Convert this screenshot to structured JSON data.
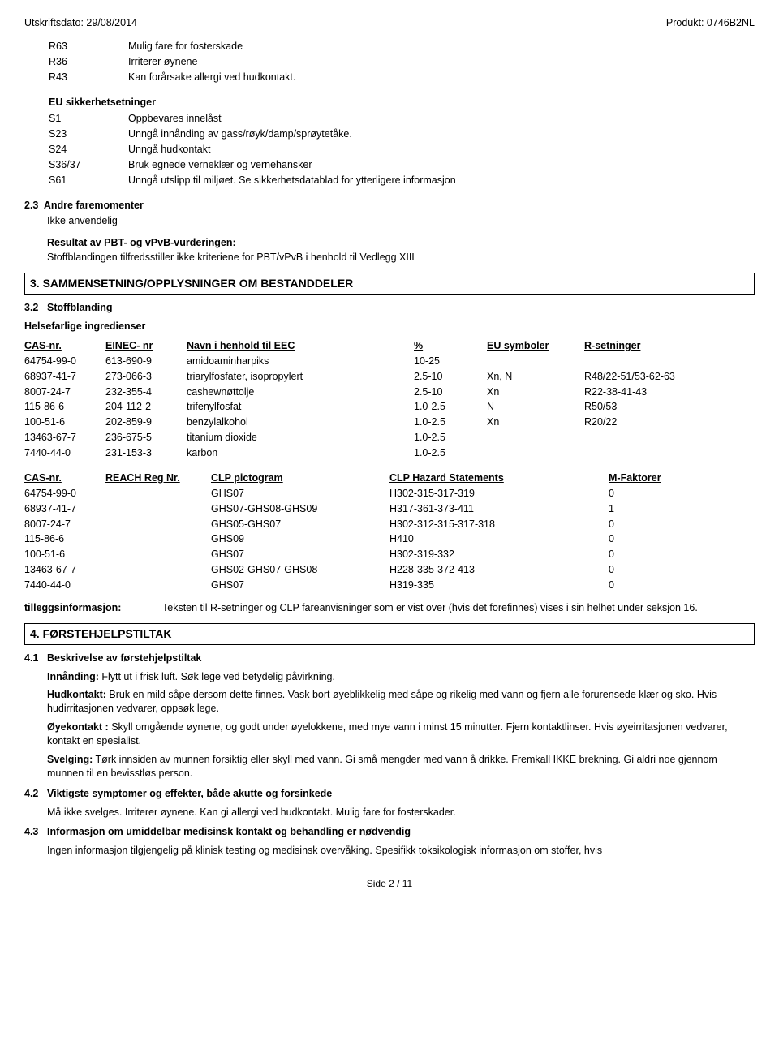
{
  "header": {
    "print_date": "Utskriftsdato: 29/08/2014",
    "product": "Produkt: 0746B2NL"
  },
  "r_phrases": [
    {
      "code": "R63",
      "text": "Mulig fare for fosterskade"
    },
    {
      "code": "R36",
      "text": "Irriterer øynene"
    },
    {
      "code": "R43",
      "text": "Kan forårsake allergi ved hudkontakt."
    }
  ],
  "eu_safety_header": "EU sikkerhetsetninger",
  "s_phrases": [
    {
      "code": "S1",
      "text": "Oppbevares innelåst"
    },
    {
      "code": "S23",
      "text": "Unngå innånding av gass/røyk/damp/sprøytetåke."
    },
    {
      "code": "S24",
      "text": "Unngå hudkontakt"
    },
    {
      "code": "S36/37",
      "text": "Bruk egnede verneklær og vernehansker"
    },
    {
      "code": "S61",
      "text": "Unngå utslipp til miljøet. Se sikkerhetsdatablad for ytterligere informasjon"
    }
  ],
  "sec23": {
    "num": "2.3",
    "title": "Andre faremomenter",
    "body": "Ikke anvendelig"
  },
  "pbt": {
    "title": "Resultat av PBT- og vPvB-vurderingen:",
    "body": "Stoffblandingen tilfredsstiller ikke kriteriene for PBT/vPvB i henhold til Vedlegg XIII"
  },
  "section3": {
    "bar": "3. SAMMENSETNING/OPPLYSNINGER OM BESTANDDELER",
    "sub_num": "3.2",
    "sub_title": "Stoffblanding",
    "ingredients_title": "Helsefarlige ingredienser"
  },
  "table1": {
    "headers": {
      "cas": "CAS-nr.",
      "einec": "EINEC- nr",
      "name": "Navn i henhold til EEC",
      "pct": "%",
      "eusym": "EU symboler",
      "rset": "R-setninger"
    },
    "rows": [
      {
        "cas": "64754-99-0",
        "einec": "613-690-9",
        "name": "amidoaminharpiks",
        "pct": "10-25",
        "eusym": "",
        "rset": ""
      },
      {
        "cas": "68937-41-7",
        "einec": "273-066-3",
        "name": "triarylfosfater, isopropylert",
        "pct": "2.5-10",
        "eusym": "Xn, N",
        "rset": "R48/22-51/53-62-63"
      },
      {
        "cas": "8007-24-7",
        "einec": "232-355-4",
        "name": "cashewnøttolje",
        "pct": "2.5-10",
        "eusym": "Xn",
        "rset": "R22-38-41-43"
      },
      {
        "cas": "115-86-6",
        "einec": "204-112-2",
        "name": "trifenylfosfat",
        "pct": "1.0-2.5",
        "eusym": "N",
        "rset": "R50/53"
      },
      {
        "cas": "100-51-6",
        "einec": "202-859-9",
        "name": "benzylalkohol",
        "pct": "1.0-2.5",
        "eusym": "Xn",
        "rset": "R20/22"
      },
      {
        "cas": "13463-67-7",
        "einec": "236-675-5",
        "name": "titanium dioxide",
        "pct": "1.0-2.5",
        "eusym": "",
        "rset": ""
      },
      {
        "cas": "7440-44-0",
        "einec": "231-153-3",
        "name": "karbon",
        "pct": "1.0-2.5",
        "eusym": "",
        "rset": ""
      }
    ]
  },
  "table2": {
    "headers": {
      "cas": "CAS-nr.",
      "reach": "REACH Reg Nr.",
      "clp": "CLP pictogram",
      "haz": "CLP Hazard Statements",
      "mf": "M-Faktorer"
    },
    "rows": [
      {
        "cas": "64754-99-0",
        "reach": "",
        "clp": "GHS07",
        "haz": "H302-315-317-319",
        "mf": "0"
      },
      {
        "cas": "68937-41-7",
        "reach": "",
        "clp": "GHS07-GHS08-GHS09",
        "haz": "H317-361-373-411",
        "mf": "1"
      },
      {
        "cas": "8007-24-7",
        "reach": "",
        "clp": "GHS05-GHS07",
        "haz": "H302-312-315-317-318",
        "mf": "0"
      },
      {
        "cas": "115-86-6",
        "reach": "",
        "clp": "GHS09",
        "haz": "H410",
        "mf": "0"
      },
      {
        "cas": "100-51-6",
        "reach": "",
        "clp": "GHS07",
        "haz": "H302-319-332",
        "mf": "0"
      },
      {
        "cas": "13463-67-7",
        "reach": "",
        "clp": "GHS02-GHS07-GHS08",
        "haz": "H228-335-372-413",
        "mf": "0"
      },
      {
        "cas": "7440-44-0",
        "reach": "",
        "clp": "GHS07",
        "haz": "H319-335",
        "mf": "0"
      }
    ]
  },
  "addinfo": {
    "label": "tilleggsinformasjon:",
    "text": "Teksten til R-setninger og CLP fareanvisninger som er vist over (hvis det forefinnes) vises i sin helhet under seksjon 16."
  },
  "section4": {
    "bar": "4. FØRSTEHJELPSTILTAK",
    "s41_num": "4.1",
    "s41_title": "Beskrivelse av førstehjelpstiltak",
    "inhale_lbl": "Innånding:",
    "inhale": " Flytt ut i frisk luft.  Søk lege ved betydelig påvirkning.",
    "skin_lbl": "Hudkontakt:",
    "skin": " Bruk en mild såpe dersom dette finnes.  Vask bort øyeblikkelig med såpe og rikelig med vann og fjern alle forurensede klær og sko.  Hvis hudirritasjonen vedvarer, oppsøk lege.",
    "eye_lbl": "Øyekontakt :",
    "eye": " Skyll omgående øynene, og godt under øyelokkene, med mye vann i minst 15 minutter.  Fjern kontaktlinser. Hvis øyeirritasjonen vedvarer, kontakt en spesialist.",
    "swallow_lbl": "Svelging:",
    "swallow": " Tørk innsiden av munnen forsiktig eller skyll med vann.  Gi små mengder med vann å drikke.  Fremkall IKKE brekning.  Gi aldri noe gjennom munnen til en bevisstløs person.",
    "s42_num": "4.2",
    "s42_title": "Viktigste symptomer og effekter, både akutte og forsinkede",
    "s42_body": "Må ikke svelges.  Irriterer øynene. Kan gi allergi ved hudkontakt. Mulig fare for fosterskader.",
    "s43_num": "4.3",
    "s43_title": "Informasjon om umiddelbar medisinsk kontakt og behandling er nødvendig",
    "s43_body": "Ingen informasjon tilgjengelig på klinisk testing og medisinsk overvåking. Spesifikk toksikologisk informasjon om stoffer, hvis"
  },
  "footer": "Side 2 / 11"
}
